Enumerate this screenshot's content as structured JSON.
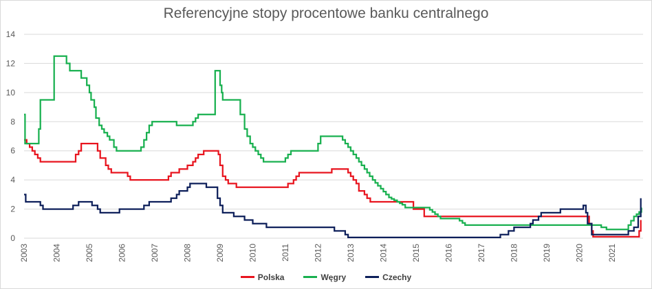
{
  "chart_data": {
    "type": "line",
    "title": "Referencyjne stopy procentowe banku centralnego",
    "xlabel": "",
    "ylabel": "",
    "ylim": [
      0,
      14
    ],
    "yticks": [
      0,
      2,
      4,
      6,
      8,
      10,
      12,
      14
    ],
    "xlim": [
      2003.0,
      2021.95
    ],
    "xticks": [
      "2003",
      "2004",
      "2005",
      "2006",
      "2007",
      "2008",
      "2009",
      "2010",
      "2011",
      "2012",
      "2013",
      "2014",
      "2015",
      "2016",
      "2017",
      "2018",
      "2019",
      "2020",
      "2021"
    ],
    "grid": true,
    "legend_position": "bottom",
    "series": [
      {
        "name": "Polska",
        "color": "#e8141e",
        "points": [
          [
            2003.0,
            6.75
          ],
          [
            2003.08,
            6.5
          ],
          [
            2003.17,
            6.25
          ],
          [
            2003.25,
            6.0
          ],
          [
            2003.33,
            5.75
          ],
          [
            2003.42,
            5.5
          ],
          [
            2003.5,
            5.25
          ],
          [
            2004.5,
            5.25
          ],
          [
            2004.58,
            5.75
          ],
          [
            2004.67,
            6.0
          ],
          [
            2004.75,
            6.5
          ],
          [
            2005.17,
            6.5
          ],
          [
            2005.25,
            6.0
          ],
          [
            2005.33,
            5.5
          ],
          [
            2005.5,
            5.0
          ],
          [
            2005.58,
            4.75
          ],
          [
            2005.67,
            4.5
          ],
          [
            2006.08,
            4.5
          ],
          [
            2006.17,
            4.25
          ],
          [
            2006.25,
            4.0
          ],
          [
            2007.25,
            4.0
          ],
          [
            2007.42,
            4.25
          ],
          [
            2007.5,
            4.5
          ],
          [
            2007.75,
            4.75
          ],
          [
            2008.0,
            5.0
          ],
          [
            2008.17,
            5.25
          ],
          [
            2008.25,
            5.5
          ],
          [
            2008.33,
            5.75
          ],
          [
            2008.5,
            6.0
          ],
          [
            2008.9,
            6.0
          ],
          [
            2008.95,
            5.75
          ],
          [
            2009.0,
            5.0
          ],
          [
            2009.08,
            4.25
          ],
          [
            2009.17,
            4.0
          ],
          [
            2009.25,
            3.75
          ],
          [
            2009.5,
            3.5
          ],
          [
            2011.0,
            3.5
          ],
          [
            2011.08,
            3.75
          ],
          [
            2011.25,
            4.0
          ],
          [
            2011.33,
            4.25
          ],
          [
            2011.42,
            4.5
          ],
          [
            2012.33,
            4.5
          ],
          [
            2012.42,
            4.75
          ],
          [
            2012.83,
            4.75
          ],
          [
            2012.92,
            4.5
          ],
          [
            2013.0,
            4.25
          ],
          [
            2013.08,
            4.0
          ],
          [
            2013.17,
            3.75
          ],
          [
            2013.25,
            3.25
          ],
          [
            2013.42,
            3.0
          ],
          [
            2013.5,
            2.75
          ],
          [
            2013.6,
            2.5
          ],
          [
            2014.83,
            2.5
          ],
          [
            2014.92,
            2.0
          ],
          [
            2015.17,
            2.0
          ],
          [
            2015.25,
            1.5
          ],
          [
            2020.25,
            1.5
          ],
          [
            2020.3,
            1.0
          ],
          [
            2020.38,
            0.5
          ],
          [
            2020.42,
            0.1
          ],
          [
            2021.75,
            0.1
          ],
          [
            2021.83,
            0.5
          ],
          [
            2021.88,
            1.25
          ]
        ]
      },
      {
        "name": "Węgry",
        "color": "#18b04f",
        "points": [
          [
            2003.0,
            8.5
          ],
          [
            2003.03,
            6.5
          ],
          [
            2003.42,
            6.5
          ],
          [
            2003.45,
            7.5
          ],
          [
            2003.5,
            9.5
          ],
          [
            2003.83,
            9.5
          ],
          [
            2003.92,
            12.5
          ],
          [
            2004.25,
            12.5
          ],
          [
            2004.3,
            12.0
          ],
          [
            2004.4,
            11.5
          ],
          [
            2004.67,
            11.5
          ],
          [
            2004.75,
            11.0
          ],
          [
            2004.92,
            10.5
          ],
          [
            2005.0,
            10.0
          ],
          [
            2005.05,
            9.5
          ],
          [
            2005.15,
            9.0
          ],
          [
            2005.2,
            8.25
          ],
          [
            2005.3,
            7.75
          ],
          [
            2005.38,
            7.5
          ],
          [
            2005.45,
            7.25
          ],
          [
            2005.55,
            7.0
          ],
          [
            2005.62,
            6.75
          ],
          [
            2005.75,
            6.25
          ],
          [
            2005.83,
            6.0
          ],
          [
            2006.5,
            6.0
          ],
          [
            2006.58,
            6.25
          ],
          [
            2006.67,
            6.75
          ],
          [
            2006.75,
            7.25
          ],
          [
            2006.83,
            7.75
          ],
          [
            2006.92,
            8.0
          ],
          [
            2007.58,
            8.0
          ],
          [
            2007.67,
            7.75
          ],
          [
            2008.08,
            7.75
          ],
          [
            2008.17,
            8.0
          ],
          [
            2008.25,
            8.25
          ],
          [
            2008.33,
            8.5
          ],
          [
            2008.83,
            8.5
          ],
          [
            2008.85,
            11.5
          ],
          [
            2008.95,
            11.5
          ],
          [
            2009.0,
            10.5
          ],
          [
            2009.05,
            10.0
          ],
          [
            2009.08,
            9.5
          ],
          [
            2009.58,
            9.5
          ],
          [
            2009.62,
            8.5
          ],
          [
            2009.75,
            7.5
          ],
          [
            2009.83,
            7.0
          ],
          [
            2009.92,
            6.5
          ],
          [
            2010.0,
            6.25
          ],
          [
            2010.08,
            6.0
          ],
          [
            2010.17,
            5.75
          ],
          [
            2010.25,
            5.5
          ],
          [
            2010.33,
            5.25
          ],
          [
            2010.92,
            5.25
          ],
          [
            2011.0,
            5.5
          ],
          [
            2011.08,
            5.75
          ],
          [
            2011.17,
            6.0
          ],
          [
            2011.92,
            6.0
          ],
          [
            2012.0,
            6.5
          ],
          [
            2012.08,
            7.0
          ],
          [
            2012.67,
            7.0
          ],
          [
            2012.75,
            6.75
          ],
          [
            2012.83,
            6.5
          ],
          [
            2012.92,
            6.25
          ],
          [
            2013.0,
            6.0
          ],
          [
            2013.08,
            5.75
          ],
          [
            2013.17,
            5.5
          ],
          [
            2013.25,
            5.25
          ],
          [
            2013.33,
            5.0
          ],
          [
            2013.42,
            4.75
          ],
          [
            2013.5,
            4.5
          ],
          [
            2013.58,
            4.25
          ],
          [
            2013.67,
            4.0
          ],
          [
            2013.75,
            3.8
          ],
          [
            2013.83,
            3.6
          ],
          [
            2013.92,
            3.4
          ],
          [
            2014.0,
            3.2
          ],
          [
            2014.08,
            3.0
          ],
          [
            2014.17,
            2.8
          ],
          [
            2014.25,
            2.7
          ],
          [
            2014.33,
            2.6
          ],
          [
            2014.42,
            2.5
          ],
          [
            2014.5,
            2.4
          ],
          [
            2014.58,
            2.3
          ],
          [
            2014.67,
            2.1
          ],
          [
            2015.33,
            2.1
          ],
          [
            2015.42,
            1.95
          ],
          [
            2015.5,
            1.8
          ],
          [
            2015.58,
            1.65
          ],
          [
            2015.67,
            1.5
          ],
          [
            2015.75,
            1.35
          ],
          [
            2016.25,
            1.35
          ],
          [
            2016.33,
            1.2
          ],
          [
            2016.42,
            1.05
          ],
          [
            2016.5,
            0.9
          ],
          [
            2020.58,
            0.9
          ],
          [
            2020.67,
            0.75
          ],
          [
            2020.83,
            0.6
          ],
          [
            2021.42,
            0.6
          ],
          [
            2021.5,
            0.9
          ],
          [
            2021.58,
            1.2
          ],
          [
            2021.67,
            1.5
          ],
          [
            2021.75,
            1.65
          ],
          [
            2021.83,
            1.8
          ],
          [
            2021.9,
            2.1
          ]
        ]
      },
      {
        "name": "Czechy",
        "color": "#0d1f5a",
        "points": [
          [
            2003.0,
            3.0
          ],
          [
            2003.05,
            2.5
          ],
          [
            2003.42,
            2.5
          ],
          [
            2003.5,
            2.25
          ],
          [
            2003.58,
            2.0
          ],
          [
            2004.42,
            2.0
          ],
          [
            2004.5,
            2.25
          ],
          [
            2004.67,
            2.5
          ],
          [
            2005.0,
            2.5
          ],
          [
            2005.08,
            2.25
          ],
          [
            2005.25,
            2.0
          ],
          [
            2005.33,
            1.75
          ],
          [
            2005.83,
            1.75
          ],
          [
            2005.92,
            2.0
          ],
          [
            2006.58,
            2.0
          ],
          [
            2006.67,
            2.25
          ],
          [
            2006.83,
            2.5
          ],
          [
            2007.42,
            2.5
          ],
          [
            2007.5,
            2.75
          ],
          [
            2007.67,
            3.0
          ],
          [
            2007.75,
            3.25
          ],
          [
            2007.92,
            3.25
          ],
          [
            2008.0,
            3.5
          ],
          [
            2008.08,
            3.75
          ],
          [
            2008.5,
            3.75
          ],
          [
            2008.58,
            3.5
          ],
          [
            2008.83,
            3.5
          ],
          [
            2008.92,
            2.75
          ],
          [
            2009.0,
            2.25
          ],
          [
            2009.08,
            1.75
          ],
          [
            2009.33,
            1.75
          ],
          [
            2009.42,
            1.5
          ],
          [
            2009.67,
            1.5
          ],
          [
            2009.75,
            1.25
          ],
          [
            2009.92,
            1.25
          ],
          [
            2010.0,
            1.0
          ],
          [
            2010.33,
            1.0
          ],
          [
            2010.42,
            0.75
          ],
          [
            2012.42,
            0.75
          ],
          [
            2012.5,
            0.5
          ],
          [
            2012.75,
            0.5
          ],
          [
            2012.83,
            0.25
          ],
          [
            2012.92,
            0.05
          ],
          [
            2017.5,
            0.05
          ],
          [
            2017.58,
            0.25
          ],
          [
            2017.83,
            0.5
          ],
          [
            2018.0,
            0.75
          ],
          [
            2018.42,
            0.75
          ],
          [
            2018.5,
            1.0
          ],
          [
            2018.58,
            1.25
          ],
          [
            2018.75,
            1.5
          ],
          [
            2018.83,
            1.75
          ],
          [
            2019.33,
            1.75
          ],
          [
            2019.42,
            2.0
          ],
          [
            2020.08,
            2.0
          ],
          [
            2020.12,
            2.25
          ],
          [
            2020.2,
            1.75
          ],
          [
            2020.25,
            1.0
          ],
          [
            2020.38,
            0.25
          ],
          [
            2021.42,
            0.25
          ],
          [
            2021.5,
            0.5
          ],
          [
            2021.67,
            0.75
          ],
          [
            2021.8,
            1.5
          ],
          [
            2021.88,
            2.75
          ]
        ]
      }
    ]
  }
}
